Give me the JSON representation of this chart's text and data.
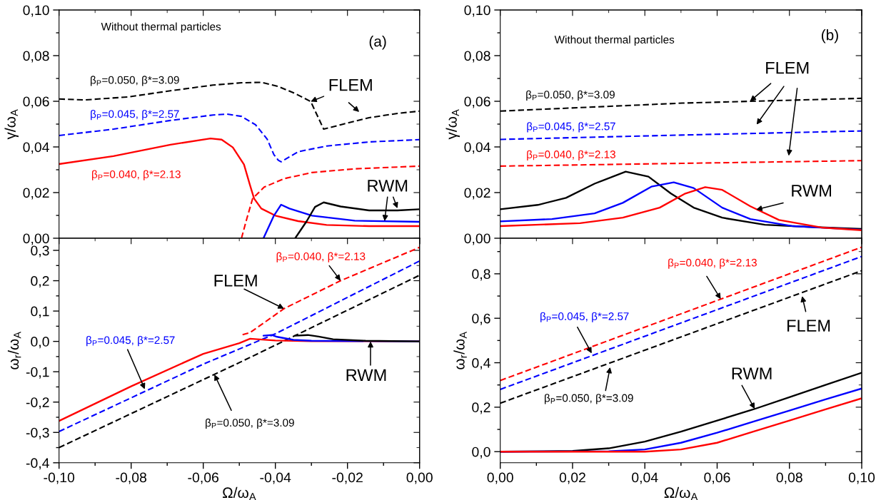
{
  "chart_data": [
    {
      "type": "line",
      "ylabel": "γ/ω$_{A}$",
      "xlim": [
        -0.1,
        0.0
      ],
      "ylim": [
        0.0,
        0.1
      ],
      "tick_labels": "y",
      "xticks": [
        -0.1,
        {
          "value": -0.09,
          "label": null
        },
        -0.08,
        {
          "value": -0.07,
          "label": null
        },
        -0.06,
        {
          "value": -0.05,
          "label": null
        },
        -0.04,
        {
          "value": -0.03,
          "label": null
        },
        -0.02,
        {
          "value": -0.01,
          "label": null
        },
        0.0
      ],
      "yticks": [
        {
          "value": 0.0,
          "label": "0,00"
        },
        {
          "value": 0.01,
          "label": null
        },
        {
          "value": 0.02,
          "label": "0,02"
        },
        {
          "value": 0.03,
          "label": null
        },
        {
          "value": 0.04,
          "label": "0,04"
        },
        {
          "value": 0.05,
          "label": null
        },
        {
          "value": 0.06,
          "label": "0,06"
        },
        {
          "value": 0.07,
          "label": null
        },
        {
          "value": 0.08,
          "label": "0,08"
        },
        {
          "value": 0.09,
          "label": null
        },
        {
          "value": 0.1,
          "label": "0,10"
        }
      ],
      "series": [
        {
          "color": "#000000",
          "line_style": "dashed",
          "x": [
            -0.1,
            -0.0928,
            -0.0809,
            -0.0691,
            -0.0573,
            -0.0494,
            -0.0439,
            -0.0392,
            -0.0345,
            -0.0302,
            -0.0266,
            -0.0219,
            -0.014,
            -0.0061,
            0.0
          ],
          "values": [
            0.061,
            0.0606,
            0.0619,
            0.0646,
            0.0671,
            0.0681,
            0.0683,
            0.0665,
            0.0634,
            0.0599,
            0.0478,
            0.0497,
            0.0528,
            0.0547,
            0.0557
          ]
        },
        {
          "color": "#0000ff",
          "line_style": "dashed",
          "x": [
            -0.1,
            -0.0849,
            -0.0691,
            -0.0573,
            -0.0534,
            -0.0494,
            -0.0455,
            -0.0423,
            -0.0404,
            -0.0392,
            -0.0384,
            -0.0337,
            -0.0258,
            -0.014,
            0.0
          ],
          "values": [
            0.045,
            0.0478,
            0.0516,
            0.054,
            0.0544,
            0.0534,
            0.0497,
            0.0435,
            0.0366,
            0.0342,
            0.0335,
            0.0379,
            0.0404,
            0.0422,
            0.0432
          ]
        },
        {
          "color": "#ff0000",
          "line_style": "solid",
          "x": [
            -0.1,
            -0.0849,
            -0.0691,
            -0.058,
            -0.0549,
            -0.0518,
            -0.0487,
            -0.0471,
            -0.0459,
            -0.0439,
            -0.04,
            -0.0337,
            -0.0258,
            -0.014,
            0.0
          ],
          "values": [
            0.0325,
            0.036,
            0.041,
            0.0437,
            0.0432,
            0.0398,
            0.0323,
            0.0236,
            0.0174,
            0.013,
            0.0099,
            0.0075,
            0.0058,
            0.0053,
            0.0053
          ]
        },
        {
          "color": "#ff0000",
          "line_style": "dashed",
          "x": [
            -0.0494,
            -0.0479,
            -0.0463,
            -0.0431,
            -0.0376,
            -0.0298,
            -0.018,
            0.0
          ],
          "values": [
            0.0,
            0.0087,
            0.0174,
            0.0224,
            0.0261,
            0.0288,
            0.0304,
            0.0316
          ]
        },
        {
          "color": "#0000ff",
          "line_style": "solid",
          "x": [
            -0.0433,
            -0.0404,
            -0.0384,
            -0.0361,
            -0.0298,
            -0.018,
            0.0
          ],
          "values": [
            0.0,
            0.0099,
            0.0147,
            0.013,
            0.0099,
            0.0077,
            0.0072
          ]
        },
        {
          "color": "#000000",
          "line_style": "solid",
          "x": [
            -0.0345,
            -0.0313,
            -0.029,
            -0.0266,
            -0.0219,
            -0.014,
            -0.0061,
            0.0
          ],
          "values": [
            0.0,
            0.0075,
            0.0137,
            0.0157,
            0.0139,
            0.0122,
            0.0122,
            0.0127
          ]
        }
      ],
      "annotations": [
        "Without thermal particles",
        "(a)",
        "β$_{P}$=0.050, β*=3.09",
        "β$_{P}$=0.045, β*=2.57",
        "β$_{P}$=0.040, β*=2.13",
        {
          "text": "FLEM",
          "x": -0.0302,
          "y": 0.0599
        },
        {
          "text": "RWM",
          "x": -0.0097,
          "y": 0.0075
        }
      ]
    },
    {
      "type": "line",
      "ylabel": "γ/ω$_{A}$",
      "xlim": [
        0.0,
        0.1
      ],
      "ylim": [
        0.0,
        0.1
      ],
      "tick_labels": "y",
      "xticks": [
        0.0,
        {
          "value": 0.01,
          "label": null
        },
        0.02,
        {
          "value": 0.03,
          "label": null
        },
        0.04,
        {
          "value": 0.05,
          "label": null
        },
        0.06,
        {
          "value": 0.07,
          "label": null
        },
        0.08,
        {
          "value": 0.09,
          "label": null
        },
        0.1
      ],
      "yticks": [
        {
          "value": 0.0,
          "label": "0,00"
        },
        {
          "value": 0.01,
          "label": null
        },
        {
          "value": 0.02,
          "label": "0,02"
        },
        {
          "value": 0.03,
          "label": null
        },
        {
          "value": 0.04,
          "label": "0,04"
        },
        {
          "value": 0.05,
          "label": null
        },
        {
          "value": 0.06,
          "label": "0,06"
        },
        {
          "value": 0.07,
          "label": null
        },
        {
          "value": 0.08,
          "label": "0,08"
        },
        {
          "value": 0.09,
          "label": null
        },
        {
          "value": 0.1,
          "label": "0,10"
        }
      ],
      "series": [
        {
          "color": "#000000",
          "line_style": "dashed",
          "x": [
            0.0,
            0.0504,
            0.1
          ],
          "values": [
            0.0557,
            0.0592,
            0.0613
          ]
        },
        {
          "color": "#0000ff",
          "line_style": "dashed",
          "x": [
            0.0,
            0.05,
            0.1
          ],
          "values": [
            0.0433,
            0.0452,
            0.047
          ]
        },
        {
          "color": "#ff0000",
          "line_style": "dashed",
          "x": [
            0.0,
            0.05,
            0.1
          ],
          "values": [
            0.0316,
            0.0328,
            0.034
          ]
        },
        {
          "color": "#000000",
          "line_style": "solid",
          "x": [
            0.0,
            0.0104,
            0.0182,
            0.0261,
            0.0347,
            0.041,
            0.0472,
            0.0535,
            0.0614,
            0.0732,
            0.085,
            0.1
          ],
          "values": [
            0.0127,
            0.0146,
            0.0177,
            0.0239,
            0.0292,
            0.027,
            0.0196,
            0.0134,
            0.009,
            0.0059,
            0.005,
            0.0041
          ]
        },
        {
          "color": "#0000ff",
          "line_style": "solid",
          "x": [
            0.0,
            0.0143,
            0.0261,
            0.0339,
            0.0418,
            0.048,
            0.0535,
            0.0614,
            0.0692,
            0.081,
            0.1
          ],
          "values": [
            0.0074,
            0.0084,
            0.0109,
            0.0155,
            0.0226,
            0.0245,
            0.022,
            0.0134,
            0.0084,
            0.0053,
            0.0037
          ]
        },
        {
          "color": "#ff0000",
          "line_style": "solid",
          "x": [
            0.0,
            0.0221,
            0.0339,
            0.0441,
            0.0512,
            0.0567,
            0.0614,
            0.0692,
            0.0771,
            0.0888,
            0.1
          ],
          "values": [
            0.0053,
            0.0066,
            0.009,
            0.0134,
            0.0196,
            0.0224,
            0.0212,
            0.014,
            0.008,
            0.0047,
            0.0035
          ]
        }
      ],
      "annotations": [
        "Without thermal particles",
        "(b)",
        "β$_{P}$=0.050, β*=3.09",
        "β$_{P}$=0.045, β*=2.57",
        "β$_{P}$=0.040, β*=2.13",
        {
          "text": "FLEM",
          "x": 0.0691,
          "y": 0.06
        },
        {
          "text": "RWM",
          "x": 0.0708,
          "y": 0.0125
        }
      ]
    },
    {
      "type": "line",
      "xlabel": "Ω/ω$_{A}$",
      "ylabel": "ω$_{r}$/ω$_{A}$",
      "xlim": [
        -0.1,
        0.0
      ],
      "ylim": [
        -0.4,
        0.34
      ],
      "xticks": [
        {
          "value": -0.1,
          "label": "-0,10"
        },
        {
          "value": -0.09,
          "label": null
        },
        {
          "value": -0.08,
          "label": "-0,08"
        },
        {
          "value": -0.07,
          "label": null
        },
        {
          "value": -0.06,
          "label": "-0,06"
        },
        {
          "value": -0.05,
          "label": null
        },
        {
          "value": -0.04,
          "label": "-0,04"
        },
        {
          "value": -0.03,
          "label": null
        },
        {
          "value": -0.02,
          "label": "-0,02"
        },
        {
          "value": -0.01,
          "label": null
        },
        {
          "value": 0.0,
          "label": "0,00"
        }
      ],
      "yticks": [
        {
          "value": -0.4,
          "label": "-0,4"
        },
        {
          "value": -0.35,
          "label": null
        },
        {
          "value": -0.3,
          "label": "-0,3"
        },
        {
          "value": -0.25,
          "label": null
        },
        {
          "value": -0.2,
          "label": "-0,2"
        },
        {
          "value": -0.15,
          "label": null
        },
        {
          "value": -0.1,
          "label": "-0,1"
        },
        {
          "value": -0.05,
          "label": null
        },
        {
          "value": 0.0,
          "label": "0,0"
        },
        {
          "value": 0.05,
          "label": null
        },
        {
          "value": 0.1,
          "label": "0,1"
        },
        {
          "value": 0.15,
          "label": null
        },
        {
          "value": 0.2,
          "label": "0,2"
        },
        {
          "value": 0.25,
          "label": null
        },
        {
          "value": 0.3,
          "label": "0,3"
        }
      ],
      "series": [
        {
          "color": "#ff0000",
          "line_style": "dashed",
          "x": [
            -0.0491,
            -0.047,
            -0.0376,
            -0.0219,
            0.0
          ],
          "values": [
            0.022,
            0.029,
            0.108,
            0.2,
            0.31
          ]
        },
        {
          "color": "#0000ff",
          "line_style": "dashed",
          "x": [
            -0.1,
            -0.06,
            -0.04,
            0.0
          ],
          "values": [
            -0.297,
            -0.075,
            0.025,
            0.265
          ]
        },
        {
          "color": "#000000",
          "line_style": "dashed",
          "x": [
            -0.1,
            -0.05,
            0.0
          ],
          "values": [
            -0.35,
            -0.07,
            0.218
          ]
        },
        {
          "color": "#ff0000",
          "line_style": "solid",
          "x": [
            -0.1,
            -0.08,
            -0.06,
            -0.05,
            -0.047,
            -0.045,
            -0.04,
            -0.03,
            0.0
          ],
          "values": [
            -0.262,
            -0.148,
            -0.041,
            -0.006,
            0.009,
            0.007,
            0.003,
            0.001,
            0.0
          ]
        },
        {
          "color": "#0000ff",
          "line_style": "solid",
          "x": [
            -0.0433,
            -0.041,
            -0.0395,
            -0.035,
            -0.03,
            0.0
          ],
          "values": [
            0.019,
            0.021,
            0.015,
            0.005,
            0.002,
            0.0
          ]
        },
        {
          "color": "#000000",
          "line_style": "solid",
          "x": [
            -0.0345,
            -0.031,
            -0.028,
            -0.024,
            -0.015,
            0.0
          ],
          "values": [
            0.019,
            0.021,
            0.016,
            0.007,
            0.002,
            0.0
          ]
        }
      ],
      "annotations": [
        {
          "text": "β$_{P}$=0.040, β*=2.13",
          "x": -0.0219,
          "y": 0.2
        },
        {
          "text": "FLEM",
          "x": -0.0376,
          "y": 0.108
        },
        {
          "text": "β$_{P}$=0.045, β*=2.57",
          "x": -0.0762,
          "y": -0.1575
        },
        {
          "text": "RWM",
          "x": -0.0136,
          "y": 0.0
        },
        {
          "text": "β$_{P}$=0.050, β*=3.09",
          "x": -0.0569,
          "y": -0.109
        }
      ]
    },
    {
      "type": "line",
      "xlabel": "Ω/ω$_{A}$",
      "ylabel": "ω$_{r}$/ω$_{A}$",
      "xlim": [
        0.0,
        0.1
      ],
      "ylim": [
        -0.05,
        0.96
      ],
      "xticks": [
        {
          "value": 0.0,
          "label": "0,00"
        },
        {
          "value": 0.01,
          "label": null
        },
        {
          "value": 0.02,
          "label": "0,02"
        },
        {
          "value": 0.03,
          "label": null
        },
        {
          "value": 0.04,
          "label": "0,04"
        },
        {
          "value": 0.05,
          "label": null
        },
        {
          "value": 0.06,
          "label": "0,06"
        },
        {
          "value": 0.07,
          "label": null
        },
        {
          "value": 0.08,
          "label": "0,08"
        },
        {
          "value": 0.09,
          "label": null
        },
        {
          "value": 0.1,
          "label": "0,10"
        }
      ],
      "yticks": [
        {
          "value": 0.0,
          "label": "0,0"
        },
        {
          "value": 0.1,
          "label": null
        },
        {
          "value": 0.2,
          "label": "0,2"
        },
        {
          "value": 0.3,
          "label": null
        },
        {
          "value": 0.4,
          "label": "0,4"
        },
        {
          "value": 0.5,
          "label": null
        },
        {
          "value": 0.6,
          "label": "0,6"
        },
        {
          "value": 0.7,
          "label": null
        },
        {
          "value": 0.8,
          "label": "0,8"
        },
        {
          "value": 0.9,
          "label": null
        }
      ],
      "series": [
        {
          "color": "#ff0000",
          "line_style": "dashed",
          "x": [
            0.0,
            0.1
          ],
          "values": [
            0.32,
            0.92
          ]
        },
        {
          "color": "#0000ff",
          "line_style": "dashed",
          "x": [
            0.0,
            0.1
          ],
          "values": [
            0.28,
            0.878
          ]
        },
        {
          "color": "#000000",
          "line_style": "dashed",
          "x": [
            0.0,
            0.1
          ],
          "values": [
            0.218,
            0.814
          ]
        },
        {
          "color": "#000000",
          "line_style": "solid",
          "x": [
            0.0,
            0.02,
            0.03,
            0.04,
            0.05,
            0.06,
            0.07,
            0.08,
            0.09,
            0.1
          ],
          "values": [
            0.0,
            0.003,
            0.015,
            0.045,
            0.09,
            0.14,
            0.19,
            0.245,
            0.3,
            0.355
          ]
        },
        {
          "color": "#0000ff",
          "line_style": "solid",
          "x": [
            0.0,
            0.03,
            0.04,
            0.05,
            0.06,
            0.07,
            0.08,
            0.09,
            0.1
          ],
          "values": [
            0.0,
            0.002,
            0.01,
            0.04,
            0.085,
            0.135,
            0.185,
            0.235,
            0.284
          ]
        },
        {
          "color": "#ff0000",
          "line_style": "solid",
          "x": [
            0.0,
            0.04,
            0.05,
            0.06,
            0.07,
            0.08,
            0.09,
            0.1
          ],
          "values": [
            0.0,
            0.0,
            0.01,
            0.04,
            0.09,
            0.14,
            0.19,
            0.24
          ]
        }
      ],
      "annotations": [
        {
          "text": "β$_{P}$=0.040, β*=2.13",
          "x": 0.061,
          "y": 0.686
        },
        {
          "text": "β$_{P}$=0.045, β*=2.57",
          "x": 0.0253,
          "y": 0.442
        },
        {
          "text": "FLEM",
          "x": 0.0835,
          "y": 0.7
        },
        {
          "text": "RWM",
          "x": 0.0704,
          "y": 0.192
        },
        {
          "text": "β$_{P}$=0.050, β*=3.09",
          "x": 0.0304,
          "y": 0.38
        }
      ]
    }
  ]
}
